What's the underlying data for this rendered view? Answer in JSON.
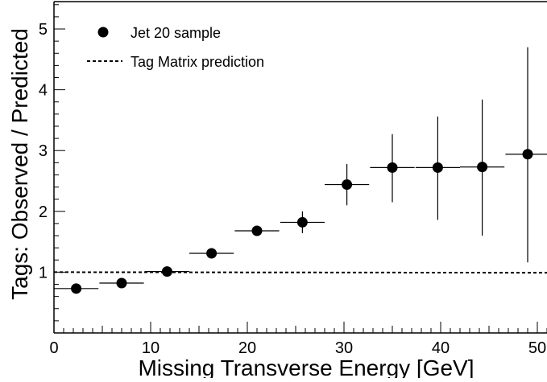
{
  "chart_data": {
    "type": "scatter",
    "xlabel": "Missing Transverse Energy [GeV]",
    "ylabel": "Tags: Observed / Predicted",
    "xlim": [
      0,
      51
    ],
    "ylim": [
      0,
      5.45
    ],
    "x_ticks": [
      0,
      10,
      20,
      30,
      40,
      50
    ],
    "y_ticks": [
      1,
      2,
      3,
      4,
      5
    ],
    "x_tick_labels": [
      "0",
      "10",
      "20",
      "30",
      "40",
      "50"
    ],
    "y_tick_labels": [
      "1",
      "2",
      "3",
      "4",
      "5"
    ],
    "grid": false,
    "legend_position": "top-left",
    "legend": [
      {
        "label": "Jet 20 sample",
        "marker": "filled-circle"
      },
      {
        "label": "Tag Matrix prediction",
        "marker": "dashed-line"
      }
    ],
    "series": [
      {
        "name": "Jet 20 sample",
        "type": "points-with-error-bars",
        "color": "#000000",
        "points": [
          {
            "x": 2.3,
            "y": 0.73,
            "xerr": 2.3,
            "yerr_low": 0.03,
            "yerr_high": 0.03
          },
          {
            "x": 7.0,
            "y": 0.82,
            "xerr": 2.3,
            "yerr_low": 0.03,
            "yerr_high": 0.03
          },
          {
            "x": 11.7,
            "y": 1.01,
            "xerr": 2.3,
            "yerr_low": 0.03,
            "yerr_high": 0.03
          },
          {
            "x": 16.3,
            "y": 1.31,
            "xerr": 2.3,
            "yerr_low": 0.04,
            "yerr_high": 0.04
          },
          {
            "x": 21.0,
            "y": 1.68,
            "xerr": 2.3,
            "yerr_low": 0.06,
            "yerr_high": 0.06
          },
          {
            "x": 25.7,
            "y": 1.82,
            "xerr": 2.3,
            "yerr_low": 0.18,
            "yerr_high": 0.18
          },
          {
            "x": 30.3,
            "y": 2.44,
            "xerr": 2.3,
            "yerr_low": 0.34,
            "yerr_high": 0.34
          },
          {
            "x": 35.0,
            "y": 2.72,
            "xerr": 2.3,
            "yerr_low": 0.57,
            "yerr_high": 0.55
          },
          {
            "x": 39.7,
            "y": 2.72,
            "xerr": 2.3,
            "yerr_low": 0.86,
            "yerr_high": 0.84
          },
          {
            "x": 44.3,
            "y": 2.73,
            "xerr": 2.3,
            "yerr_low": 1.13,
            "yerr_high": 1.11
          },
          {
            "x": 49.0,
            "y": 2.94,
            "xerr": 2.3,
            "yerr_low": 1.78,
            "yerr_high": 1.76
          }
        ]
      },
      {
        "name": "Tag Matrix prediction",
        "type": "dashed-line",
        "color": "#000000",
        "x": [
          0,
          51
        ],
        "y": [
          1.0,
          0.99
        ]
      }
    ]
  }
}
